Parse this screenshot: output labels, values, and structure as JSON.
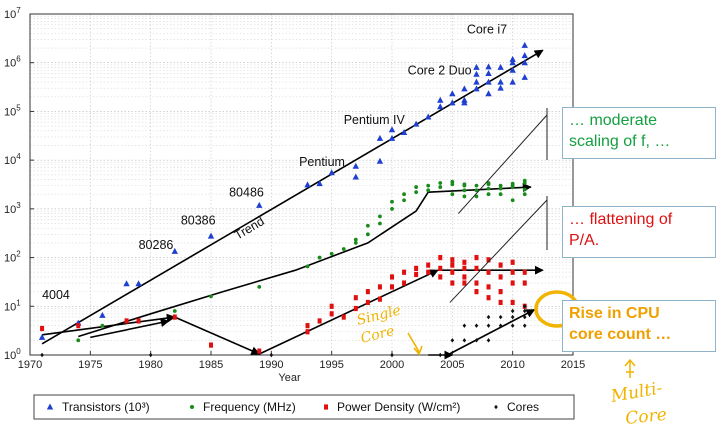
{
  "chart_data": {
    "type": "scatter",
    "x_axis": {
      "label": "Year",
      "range": [
        1970,
        2015
      ],
      "ticks": [
        1970,
        1975,
        1980,
        1985,
        1990,
        1995,
        2000,
        2005,
        2010,
        2015
      ]
    },
    "y_axis": {
      "scale": "log",
      "range": [
        1,
        10000000
      ],
      "tick_labels": [
        {
          "value": 1,
          "base": "10",
          "exp": "0"
        },
        {
          "value": 10,
          "base": "10",
          "exp": "1"
        },
        {
          "value": 100,
          "base": "10",
          "exp": "2"
        },
        {
          "value": 1000,
          "base": "10",
          "exp": "3"
        },
        {
          "value": 10000,
          "base": "10",
          "exp": "4"
        },
        {
          "value": 100000,
          "base": "10",
          "exp": "5"
        },
        {
          "value": 1000000,
          "base": "10",
          "exp": "6"
        },
        {
          "value": 10000000,
          "base": "10",
          "exp": "7"
        }
      ]
    },
    "grid": true,
    "legend_position": "bottom",
    "series": [
      {
        "name": "Transistors (10³)",
        "marker": "triangle",
        "color": "#1f3fd0",
        "points": [
          [
            1971,
            2.3
          ],
          [
            1974,
            4.5
          ],
          [
            1976,
            6.5
          ],
          [
            1978,
            29
          ],
          [
            1979,
            29
          ],
          [
            1982,
            134
          ],
          [
            1985,
            275
          ],
          [
            1989,
            1180
          ],
          [
            1993,
            3100
          ],
          [
            1994,
            3300
          ],
          [
            1995,
            5500
          ],
          [
            1997,
            7500
          ],
          [
            1997,
            4500
          ],
          [
            1999,
            9500
          ],
          [
            1999,
            28000
          ],
          [
            2000,
            42000
          ],
          [
            2000,
            28000
          ],
          [
            2001,
            37000
          ],
          [
            2002,
            55000
          ],
          [
            2003,
            77000
          ],
          [
            2004,
            125000
          ],
          [
            2004,
            170000
          ],
          [
            2005,
            230000
          ],
          [
            2005,
            150000
          ],
          [
            2006,
            290000
          ],
          [
            2006,
            170000
          ],
          [
            2006,
            150000
          ],
          [
            2007,
            580000
          ],
          [
            2007,
            290000
          ],
          [
            2007,
            400000
          ],
          [
            2007,
            800000
          ],
          [
            2008,
            820000
          ],
          [
            2008,
            400000
          ],
          [
            2008,
            230000
          ],
          [
            2008,
            600000
          ],
          [
            2009,
            800000
          ],
          [
            2009,
            300000
          ],
          [
            2009,
            400000
          ],
          [
            2010,
            1170000
          ],
          [
            2010,
            700000
          ],
          [
            2010,
            400000
          ],
          [
            2010,
            1000000
          ],
          [
            2011,
            1400000
          ],
          [
            2011,
            2270000
          ],
          [
            2011,
            1000000
          ],
          [
            2011,
            500000
          ]
        ]
      },
      {
        "name": "Frequency (MHz)",
        "marker": "circle",
        "color": "#1a8a1a",
        "points": [
          [
            1971,
            0.9
          ],
          [
            1974,
            2
          ],
          [
            1976,
            4
          ],
          [
            1978,
            5
          ],
          [
            1979,
            5
          ],
          [
            1982,
            8
          ],
          [
            1985,
            16
          ],
          [
            1989,
            25
          ],
          [
            1993,
            66
          ],
          [
            1994,
            100
          ],
          [
            1995,
            120
          ],
          [
            1996,
            150
          ],
          [
            1997,
            200
          ],
          [
            1997,
            233
          ],
          [
            1998,
            300
          ],
          [
            1998,
            450
          ],
          [
            1999,
            500
          ],
          [
            1999,
            700
          ],
          [
            2000,
            1000
          ],
          [
            2000,
            1400
          ],
          [
            2001,
            1500
          ],
          [
            2001,
            2000
          ],
          [
            2002,
            2200
          ],
          [
            2002,
            2800
          ],
          [
            2003,
            3000
          ],
          [
            2003,
            2400
          ],
          [
            2004,
            3400
          ],
          [
            2004,
            2800
          ],
          [
            2005,
            3600
          ],
          [
            2005,
            2000
          ],
          [
            2005,
            3200
          ],
          [
            2006,
            2400
          ],
          [
            2006,
            3000
          ],
          [
            2006,
            1800
          ],
          [
            2006,
            3200
          ],
          [
            2007,
            3000
          ],
          [
            2007,
            2400
          ],
          [
            2007,
            1800
          ],
          [
            2008,
            3200
          ],
          [
            2008,
            2600
          ],
          [
            2008,
            2000
          ],
          [
            2008,
            3400
          ],
          [
            2009,
            3000
          ],
          [
            2009,
            2000
          ],
          [
            2009,
            2600
          ],
          [
            2010,
            3300
          ],
          [
            2010,
            2800
          ],
          [
            2010,
            1500
          ],
          [
            2010,
            3000
          ],
          [
            2011,
            3400
          ],
          [
            2011,
            2500
          ],
          [
            2011,
            3800
          ],
          [
            2011,
            2000
          ]
        ]
      },
      {
        "name": "Power Density (W/cm²)",
        "marker": "square",
        "color": "#e01010",
        "points": [
          [
            1971,
            3.5
          ],
          [
            1974,
            4
          ],
          [
            1978,
            5
          ],
          [
            1979,
            5
          ],
          [
            1982,
            6
          ],
          [
            1985,
            1.6
          ],
          [
            1989,
            1.2
          ],
          [
            1993,
            3
          ],
          [
            1993,
            4
          ],
          [
            1994,
            5
          ],
          [
            1995,
            7
          ],
          [
            1995,
            10
          ],
          [
            1996,
            6
          ],
          [
            1997,
            9
          ],
          [
            1997,
            15
          ],
          [
            1998,
            12
          ],
          [
            1998,
            20
          ],
          [
            1999,
            14
          ],
          [
            1999,
            25
          ],
          [
            2000,
            25
          ],
          [
            2000,
            40
          ],
          [
            2001,
            30
          ],
          [
            2001,
            50
          ],
          [
            2002,
            45
          ],
          [
            2002,
            60
          ],
          [
            2003,
            70
          ],
          [
            2003,
            50
          ],
          [
            2004,
            100
          ],
          [
            2004,
            60
          ],
          [
            2004,
            40
          ],
          [
            2005,
            90
          ],
          [
            2005,
            50
          ],
          [
            2005,
            70
          ],
          [
            2005,
            30
          ],
          [
            2006,
            80
          ],
          [
            2006,
            40
          ],
          [
            2006,
            30
          ],
          [
            2006,
            60
          ],
          [
            2007,
            100
          ],
          [
            2007,
            60
          ],
          [
            2007,
            30
          ],
          [
            2007,
            20
          ],
          [
            2008,
            90
          ],
          [
            2008,
            50
          ],
          [
            2008,
            25
          ],
          [
            2008,
            15
          ],
          [
            2009,
            70
          ],
          [
            2009,
            40
          ],
          [
            2009,
            20
          ],
          [
            2009,
            12
          ],
          [
            2010,
            80
          ],
          [
            2010,
            50
          ],
          [
            2010,
            30
          ],
          [
            2010,
            12
          ],
          [
            2011,
            50
          ],
          [
            2011,
            30
          ],
          [
            2011,
            10
          ]
        ]
      },
      {
        "name": "Cores",
        "marker": "diamond",
        "color": "#111111",
        "points": [
          [
            1971,
            1
          ],
          [
            1980,
            1
          ],
          [
            1990,
            1
          ],
          [
            2000,
            1
          ],
          [
            2004,
            1
          ],
          [
            2005,
            2
          ],
          [
            2006,
            2
          ],
          [
            2006,
            4
          ],
          [
            2007,
            2
          ],
          [
            2007,
            4
          ],
          [
            2008,
            2
          ],
          [
            2008,
            4
          ],
          [
            2008,
            6
          ],
          [
            2009,
            4
          ],
          [
            2009,
            6
          ],
          [
            2010,
            4
          ],
          [
            2010,
            6
          ],
          [
            2010,
            8
          ],
          [
            2011,
            6
          ],
          [
            2011,
            8
          ],
          [
            2011,
            4
          ],
          [
            2011,
            10
          ]
        ]
      }
    ],
    "trend_lines": [
      {
        "name": "transistors-trend",
        "points": [
          [
            1971,
            1.7
          ],
          [
            2012.5,
            1800000
          ]
        ]
      },
      {
        "name": "frequency-trend",
        "points": [
          [
            1974,
            2.4
          ],
          [
            1980,
            7
          ],
          [
            1986,
            20
          ],
          [
            1992,
            55
          ],
          [
            1998,
            200
          ],
          [
            2002,
            900
          ],
          [
            2003,
            2200
          ],
          [
            2011.5,
            2800
          ]
        ]
      },
      {
        "name": "power-trend-1",
        "points": [
          [
            1971,
            2.6
          ],
          [
            1982,
            6
          ]
        ]
      },
      {
        "name": "power-trend-2",
        "points": [
          [
            1982,
            6
          ],
          [
            1989,
            1.05
          ]
        ]
      },
      {
        "name": "power-trend-3",
        "points": [
          [
            1989,
            1.05
          ],
          [
            2003.8,
            55
          ]
        ]
      },
      {
        "name": "power-trend-4",
        "points": [
          [
            2003.8,
            55
          ],
          [
            2012.5,
            55
          ]
        ]
      },
      {
        "name": "power-trend-5",
        "points": [
          [
            1975,
            2.3
          ],
          [
            1981.5,
            5
          ]
        ]
      },
      {
        "name": "cores-trend-1",
        "points": [
          [
            2003,
            1
          ],
          [
            2005,
            1
          ]
        ]
      },
      {
        "name": "cores-trend-2",
        "points": [
          [
            2004.6,
            1
          ],
          [
            2011.8,
            8.5
          ]
        ]
      }
    ],
    "annotations": [
      {
        "id": "label-4004",
        "text": "4004",
        "x": 1971,
        "y": 14
      },
      {
        "id": "label-80286",
        "text": "80286",
        "x": 1979,
        "y": 150
      },
      {
        "id": "label-80386",
        "text": "80386",
        "x": 1982.5,
        "y": 480
      },
      {
        "id": "label-80486",
        "text": "80486",
        "x": 1986.5,
        "y": 1800
      },
      {
        "id": "label-pentium",
        "text": "Pentium",
        "x": 1992.3,
        "y": 7500
      },
      {
        "id": "label-pentium-iv",
        "text": "Pentium IV",
        "x": 1996,
        "y": 55000
      },
      {
        "id": "label-core2duo",
        "text": "Core 2 Duo",
        "x": 2001.3,
        "y": 570000
      },
      {
        "id": "label-corei7",
        "text": "Core i7",
        "x": 2006.2,
        "y": 4000000
      }
    ],
    "trend_label": "Trend",
    "callouts": [
      {
        "text_lines": [
          "… moderate",
          "scaling of f, …"
        ],
        "color": "#14a040"
      },
      {
        "text_lines": [
          "… flattening of",
          "P/A."
        ],
        "color": "#e01010"
      },
      {
        "text_lines": [
          "Rise in CPU",
          "core count …"
        ],
        "color": "#f0a000"
      }
    ],
    "handwritten": {
      "single_core": [
        "Single",
        "Core"
      ],
      "multi_core": [
        "Multi-",
        "Core"
      ]
    }
  }
}
